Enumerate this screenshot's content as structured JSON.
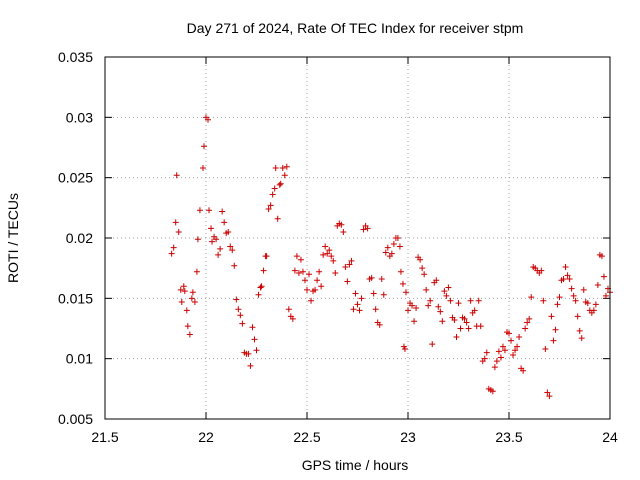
{
  "chart_data": {
    "type": "scatter",
    "title": "Day 271 of 2024, Rate Of TEC Index for receiver stpm",
    "xlabel": "GPS time / hours",
    "ylabel": "ROTI / TECUs",
    "xlim": [
      21.5,
      24
    ],
    "ylim": [
      0.005,
      0.035
    ],
    "x_ticks": [
      21.5,
      22,
      22.5,
      23,
      23.5,
      24
    ],
    "x_tick_labels": [
      "21.5",
      "22",
      "22.5",
      "23",
      "23.5",
      "24"
    ],
    "y_ticks": [
      0.005,
      0.01,
      0.015,
      0.02,
      0.025,
      0.03,
      0.035
    ],
    "y_tick_labels": [
      "0.005",
      "0.01",
      "0.015",
      "0.02",
      "0.025",
      "0.03",
      "0.035"
    ],
    "grid": true,
    "marker": "+",
    "color": "#cc0000",
    "series": [
      {
        "name": "ROTI",
        "points": [
          [
            21.83,
            0.0187
          ],
          [
            21.84,
            0.0192
          ],
          [
            21.85,
            0.0213
          ],
          [
            21.855,
            0.0252
          ],
          [
            21.865,
            0.0205
          ],
          [
            21.875,
            0.0157
          ],
          [
            21.88,
            0.0147
          ],
          [
            21.89,
            0.016
          ],
          [
            21.895,
            0.0156
          ],
          [
            21.905,
            0.014
          ],
          [
            21.91,
            0.0127
          ],
          [
            21.92,
            0.012
          ],
          [
            21.93,
            0.015
          ],
          [
            21.935,
            0.0155
          ],
          [
            21.945,
            0.0147
          ],
          [
            21.955,
            0.0172
          ],
          [
            21.96,
            0.0199
          ],
          [
            21.97,
            0.0223
          ],
          [
            21.985,
            0.0258
          ],
          [
            21.99,
            0.0276
          ],
          [
            22.0,
            0.03
          ],
          [
            22.01,
            0.0298
          ],
          [
            22.015,
            0.0223
          ],
          [
            22.025,
            0.0208
          ],
          [
            22.03,
            0.0197
          ],
          [
            22.04,
            0.0201
          ],
          [
            22.05,
            0.0199
          ],
          [
            22.06,
            0.0186
          ],
          [
            22.07,
            0.0191
          ],
          [
            22.08,
            0.0222
          ],
          [
            22.09,
            0.0213
          ],
          [
            22.1,
            0.0204
          ],
          [
            22.11,
            0.0205
          ],
          [
            22.12,
            0.0193
          ],
          [
            22.13,
            0.019
          ],
          [
            22.14,
            0.0177
          ],
          [
            22.15,
            0.0149
          ],
          [
            22.16,
            0.0141
          ],
          [
            22.17,
            0.0136
          ],
          [
            22.18,
            0.0129
          ],
          [
            22.19,
            0.0105
          ],
          [
            22.2,
            0.0104
          ],
          [
            22.21,
            0.0104
          ],
          [
            22.22,
            0.0094
          ],
          [
            22.23,
            0.0126
          ],
          [
            22.24,
            0.0116
          ],
          [
            22.25,
            0.0107
          ],
          [
            22.26,
            0.0153
          ],
          [
            22.27,
            0.0159
          ],
          [
            22.275,
            0.016
          ],
          [
            22.285,
            0.0173
          ],
          [
            22.295,
            0.0185
          ],
          [
            22.3,
            0.0185
          ],
          [
            22.31,
            0.0224
          ],
          [
            22.32,
            0.0227
          ],
          [
            22.33,
            0.0236
          ],
          [
            22.34,
            0.0241
          ],
          [
            22.345,
            0.0258
          ],
          [
            22.355,
            0.0216
          ],
          [
            22.365,
            0.0244
          ],
          [
            22.37,
            0.0245
          ],
          [
            22.38,
            0.0258
          ],
          [
            22.39,
            0.0252
          ],
          [
            22.4,
            0.0259
          ],
          [
            22.41,
            0.0141
          ],
          [
            22.42,
            0.0135
          ],
          [
            22.43,
            0.0133
          ],
          [
            22.44,
            0.0173
          ],
          [
            22.45,
            0.0185
          ],
          [
            22.46,
            0.0171
          ],
          [
            22.47,
            0.0182
          ],
          [
            22.48,
            0.0172
          ],
          [
            22.49,
            0.0165
          ],
          [
            22.5,
            0.0157
          ],
          [
            22.51,
            0.017
          ],
          [
            22.52,
            0.0148
          ],
          [
            22.53,
            0.0156
          ],
          [
            22.54,
            0.0157
          ],
          [
            22.55,
            0.0165
          ],
          [
            22.56,
            0.0172
          ],
          [
            22.57,
            0.016
          ],
          [
            22.58,
            0.0186
          ],
          [
            22.59,
            0.0193
          ],
          [
            22.6,
            0.0187
          ],
          [
            22.61,
            0.019
          ],
          [
            22.62,
            0.0185
          ],
          [
            22.63,
            0.0181
          ],
          [
            22.64,
            0.0171
          ],
          [
            22.65,
            0.021
          ],
          [
            22.66,
            0.0212
          ],
          [
            22.67,
            0.0211
          ],
          [
            22.68,
            0.0205
          ],
          [
            22.69,
            0.0176
          ],
          [
            22.7,
            0.0164
          ],
          [
            22.71,
            0.0178
          ],
          [
            22.72,
            0.0181
          ],
          [
            22.73,
            0.0141
          ],
          [
            22.74,
            0.0154
          ],
          [
            22.75,
            0.0145
          ],
          [
            22.76,
            0.014
          ],
          [
            22.77,
            0.015
          ],
          [
            22.78,
            0.0207
          ],
          [
            22.79,
            0.021
          ],
          [
            22.8,
            0.0208
          ],
          [
            22.81,
            0.0166
          ],
          [
            22.82,
            0.0167
          ],
          [
            22.83,
            0.0154
          ],
          [
            22.84,
            0.0141
          ],
          [
            22.85,
            0.013
          ],
          [
            22.86,
            0.0128
          ],
          [
            22.87,
            0.0166
          ],
          [
            22.88,
            0.0153
          ],
          [
            22.89,
            0.0188
          ],
          [
            22.9,
            0.0192
          ],
          [
            22.91,
            0.0185
          ],
          [
            22.92,
            0.0187
          ],
          [
            22.93,
            0.0195
          ],
          [
            22.94,
            0.02
          ],
          [
            22.95,
            0.02
          ],
          [
            22.96,
            0.0193
          ],
          [
            22.965,
            0.0172
          ],
          [
            22.975,
            0.0162
          ],
          [
            22.98,
            0.011
          ],
          [
            22.985,
            0.0108
          ],
          [
            22.99,
            0.0155
          ],
          [
            23.0,
            0.014
          ],
          [
            23.01,
            0.0146
          ],
          [
            23.02,
            0.0144
          ],
          [
            23.03,
            0.0131
          ],
          [
            23.04,
            0.0142
          ],
          [
            23.05,
            0.0184
          ],
          [
            23.06,
            0.0182
          ],
          [
            23.07,
            0.0175
          ],
          [
            23.08,
            0.017
          ],
          [
            23.09,
            0.0157
          ],
          [
            23.1,
            0.0144
          ],
          [
            23.11,
            0.0148
          ],
          [
            23.12,
            0.0112
          ],
          [
            23.13,
            0.0163
          ],
          [
            23.14,
            0.0165
          ],
          [
            23.15,
            0.0143
          ],
          [
            23.16,
            0.0139
          ],
          [
            23.17,
            0.0131
          ],
          [
            23.18,
            0.0156
          ],
          [
            23.19,
            0.0152
          ],
          [
            23.2,
            0.0159
          ],
          [
            23.21,
            0.0148
          ],
          [
            23.22,
            0.0134
          ],
          [
            23.23,
            0.0132
          ],
          [
            23.24,
            0.0118
          ],
          [
            23.25,
            0.0146
          ],
          [
            23.26,
            0.0125
          ],
          [
            23.27,
            0.0134
          ],
          [
            23.28,
            0.0133
          ],
          [
            23.29,
            0.013
          ],
          [
            23.3,
            0.0125
          ],
          [
            23.31,
            0.0148
          ],
          [
            23.32,
            0.0138
          ],
          [
            23.33,
            0.014
          ],
          [
            23.34,
            0.0127
          ],
          [
            23.35,
            0.0148
          ],
          [
            23.36,
            0.0127
          ],
          [
            23.37,
            0.0098
          ],
          [
            23.38,
            0.01
          ],
          [
            23.39,
            0.0105
          ],
          [
            23.4,
            0.0075
          ],
          [
            23.41,
            0.0074
          ],
          [
            23.42,
            0.0073
          ],
          [
            23.43,
            0.0093
          ],
          [
            23.44,
            0.0098
          ],
          [
            23.45,
            0.0106
          ],
          [
            23.46,
            0.0101
          ],
          [
            23.47,
            0.011
          ],
          [
            23.48,
            0.0107
          ],
          [
            23.49,
            0.0122
          ],
          [
            23.5,
            0.0121
          ],
          [
            23.51,
            0.0115
          ],
          [
            23.52,
            0.0103
          ],
          [
            23.53,
            0.0107
          ],
          [
            23.54,
            0.011
          ],
          [
            23.55,
            0.0118
          ],
          [
            23.56,
            0.0092
          ],
          [
            23.57,
            0.009
          ],
          [
            23.58,
            0.0125
          ],
          [
            23.59,
            0.013
          ],
          [
            23.6,
            0.0133
          ],
          [
            23.61,
            0.0151
          ],
          [
            23.62,
            0.0176
          ],
          [
            23.63,
            0.0175
          ],
          [
            23.64,
            0.0173
          ],
          [
            23.65,
            0.0171
          ],
          [
            23.66,
            0.0173
          ],
          [
            23.67,
            0.0148
          ],
          [
            23.68,
            0.0108
          ],
          [
            23.69,
            0.0072
          ],
          [
            23.7,
            0.0069
          ],
          [
            23.71,
            0.0135
          ],
          [
            23.72,
            0.0115
          ],
          [
            23.73,
            0.0124
          ],
          [
            23.74,
            0.0145
          ],
          [
            23.75,
            0.0151
          ],
          [
            23.76,
            0.0165
          ],
          [
            23.77,
            0.0166
          ],
          [
            23.78,
            0.0176
          ],
          [
            23.79,
            0.0169
          ],
          [
            23.8,
            0.0166
          ],
          [
            23.81,
            0.0158
          ],
          [
            23.82,
            0.0152
          ],
          [
            23.83,
            0.0148
          ],
          [
            23.84,
            0.0135
          ],
          [
            23.85,
            0.0123
          ],
          [
            23.86,
            0.0117
          ],
          [
            23.87,
            0.0157
          ],
          [
            23.88,
            0.0147
          ],
          [
            23.89,
            0.0146
          ],
          [
            23.9,
            0.014
          ],
          [
            23.91,
            0.0138
          ],
          [
            23.92,
            0.014
          ],
          [
            23.93,
            0.0145
          ],
          [
            23.94,
            0.0161
          ],
          [
            23.95,
            0.0186
          ],
          [
            23.96,
            0.0185
          ],
          [
            23.97,
            0.0168
          ],
          [
            23.98,
            0.0152
          ],
          [
            23.99,
            0.0158
          ],
          [
            24.0,
            0.0155
          ]
        ]
      }
    ]
  }
}
